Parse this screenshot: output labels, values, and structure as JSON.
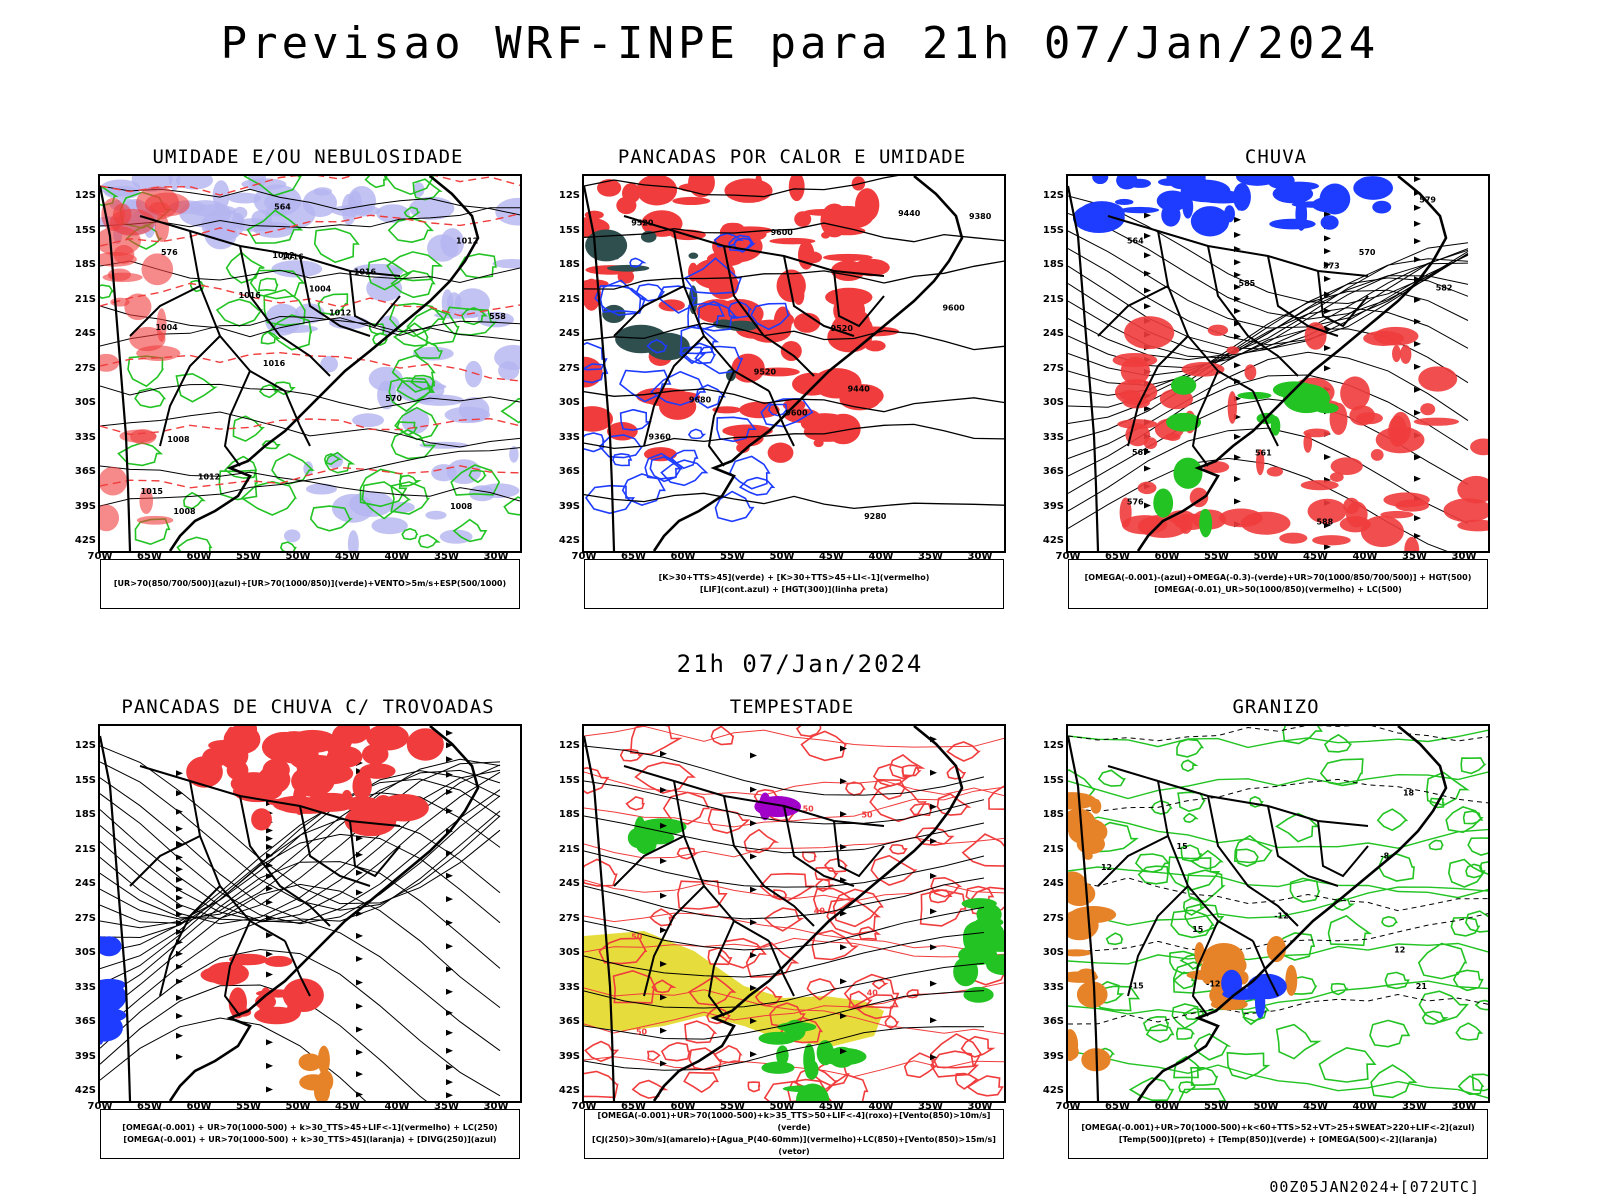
{
  "title": "Previsao WRF-INPE  para 21h 07/Jan/2024",
  "mid_title": "21h 07/Jan/2024",
  "footer": "00Z05JAN2024+[072UTC]",
  "lat_ticks": [
    "12S",
    "15S",
    "18S",
    "21S",
    "24S",
    "27S",
    "30S",
    "33S",
    "36S",
    "39S",
    "42S"
  ],
  "lon_ticks": [
    "70W",
    "65W",
    "60W",
    "55W",
    "50W",
    "45W",
    "40W",
    "35W",
    "30W"
  ],
  "colors": {
    "green": "#22c322",
    "red": "#f03c3c",
    "blue": "#1e3cff",
    "lavender": "#b4b4f0",
    "darkslate": "#2f4f4f",
    "yellow": "#e6dc3c",
    "orange": "#e68228",
    "purple": "#a000c8",
    "black": "#000000"
  },
  "panels": [
    {
      "id": "umidade",
      "title": "UMIDADE E/OU NEBULOSIDADE",
      "legend": [
        "[UR>70(850/700/500)](azul)+[UR>70(1000/850)](verde)+VENTO>5m/s+ESP(500/1000)"
      ],
      "contour_labels": [
        "1008",
        "1004",
        "1012",
        "1016",
        "1016",
        "1008",
        "1012",
        "1004",
        "1008",
        "1016",
        "1015",
        "1012",
        "1016",
        "1012",
        "570",
        "576",
        "564",
        "558"
      ]
    },
    {
      "id": "pancadas-calor",
      "title": "PANCADAS POR CALOR E UMIDADE",
      "legend": [
        "[K>30+TTS>45](verde) + [K>30+TTS>45+LI<-1](vermelho)",
        "[LIF](cont.azul) + [HGT(300)](linha preta)"
      ],
      "contour_labels": [
        "9680",
        "9600",
        "9600",
        "9520",
        "9520",
        "9440",
        "9380",
        "9360",
        "9440",
        "9280",
        "9600",
        "9520"
      ]
    },
    {
      "id": "chuva",
      "title": "CHUVA",
      "legend": [
        "[OMEGA(-0.001)-(azul)+OMEGA(-0.3)-(verde)+UR>70(1000/850/700/500)] + HGT(500)",
        "[OMEGA(-0.01)_UR>50(1000/850)(vermelho) + LC(500)"
      ],
      "contour_labels": [
        "588",
        "585",
        "582",
        "579",
        "576",
        "573",
        "570",
        "567",
        "564",
        "561"
      ]
    },
    {
      "id": "pancadas-trovoadas",
      "title": "PANCADAS DE CHUVA C/ TROVOADAS",
      "legend": [
        "[OMEGA(-0.001) + UR>70(1000-500) + k>30_TTS>45+LIF<-1](vermelho) + LC(250)",
        "[OMEGA(-0.001) + UR>70(1000-500) + k>30_TTS>45](laranja) + [DIVG(250)](azul)"
      ],
      "contour_labels": []
    },
    {
      "id": "tempestade",
      "title": "TEMPESTADE",
      "legend": [
        "[OMEGA(-0.001)+UR>70(1000-500)+k>35_TTS>50+LIF<-4](roxo)+[Vento(850)>10m/s](verde)",
        "[CJ(250)>30m/s](amarelo)+[Agua_P(40-60mm)](vermelho)+LC(850)+[Vento(850)>15m/s](vetor)"
      ],
      "contour_labels": [
        "50",
        "50",
        "40",
        "50",
        "40",
        "50"
      ]
    },
    {
      "id": "granizo",
      "title": "GRANIZO",
      "legend": [
        "[OMEGA(-0.001)+UR>70(1000-500)+k<60+TTS>52+VT>25+SWEAT>220+LIF<-2](azul)",
        "[Temp(500)](preto) + [Temp(850)](verde) + [OMEGA(500)<-2](laranja)"
      ],
      "contour_labels": [
        "21",
        "18",
        "15",
        "12",
        "-8",
        "-12",
        "-15",
        "-12",
        "15",
        "12"
      ]
    }
  ]
}
